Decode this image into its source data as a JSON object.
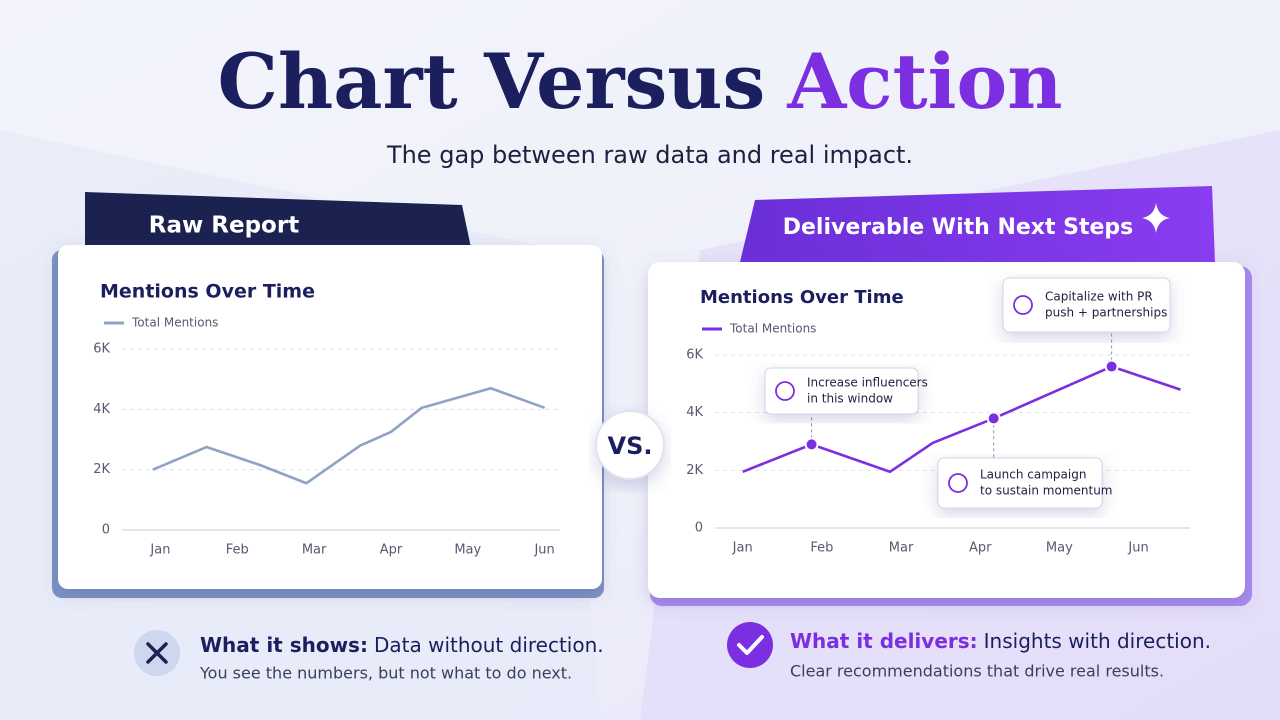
{
  "title": {
    "main": "Chart Versus",
    "accent": "Action"
  },
  "subtitle": "The gap between raw data and real impact.",
  "vs": "VS.",
  "panels": [
    {
      "tab": "Raw Report",
      "caption_head": "What it shows:",
      "caption_text": "Data without direction.",
      "caption_sub": "You see the numbers, but not what to do next."
    },
    {
      "tab": "Deliverable With Next Steps",
      "caption_head": "What it delivers:",
      "caption_text": "Insights with direction.",
      "caption_sub": "Clear recommendations that drive real results."
    }
  ],
  "chart_data": [
    {
      "type": "line",
      "title": "Mentions Over Time",
      "x": [
        -0.1,
        0.6,
        1.3,
        1.9,
        2.6,
        3.0,
        3.4,
        4.3,
        5.0
      ],
      "series": [
        {
          "name": "Total Mentions",
          "color": "#8fa3c4",
          "values": [
            2000,
            2750,
            2150,
            1550,
            2800,
            3250,
            4050,
            4700,
            4050
          ]
        }
      ],
      "xlim": [
        -0.5,
        5.2
      ],
      "xticks": [
        {
          "value": 0,
          "label": "Jan"
        },
        {
          "value": 1,
          "label": "Feb"
        },
        {
          "value": 2,
          "label": "Mar"
        },
        {
          "value": 3,
          "label": "Apr"
        },
        {
          "value": 4,
          "label": "May"
        },
        {
          "value": 5,
          "label": "Jun"
        }
      ],
      "ylim": [
        0,
        6000
      ],
      "yticks": [
        0,
        {
          "value": 2000,
          "label": "2K"
        },
        {
          "value": 4000,
          "label": "4K"
        },
        {
          "value": 6000,
          "label": "6K"
        }
      ],
      "grid": true
    },
    {
      "type": "line",
      "title": "Mentions Over Time",
      "x": [
        0,
        0.87,
        1.86,
        2.4,
        3.17,
        4.66,
        5.53
      ],
      "series": [
        {
          "name": "Total Mentions",
          "color": "#7b2fe0",
          "values": [
            1950,
            2900,
            1950,
            2950,
            3800,
            5600,
            4800
          ]
        }
      ],
      "xlim": [
        -0.35,
        5.65
      ],
      "xticks": [
        {
          "value": 0,
          "label": "Jan"
        },
        {
          "value": 1,
          "label": "Feb"
        },
        {
          "value": 2,
          "label": "Mar"
        },
        {
          "value": 3,
          "label": "Apr"
        },
        {
          "value": 4,
          "label": "May"
        },
        {
          "value": 5,
          "label": "Jun"
        }
      ],
      "ylim": [
        0,
        6000
      ],
      "yticks": [
        0,
        {
          "value": 2000,
          "label": "2K"
        },
        {
          "value": 4000,
          "label": "4K"
        },
        {
          "value": 6000,
          "label": "6K"
        }
      ],
      "grid": true,
      "annotations": [
        {
          "point": 1,
          "lines": [
            "Increase influencers",
            "in this window"
          ]
        },
        {
          "point": 4,
          "lines": [
            "Launch campaign",
            "to sustain momentum"
          ]
        },
        {
          "point": 5,
          "lines": [
            "Capitalize with PR",
            "push + partnerships"
          ]
        }
      ]
    }
  ]
}
